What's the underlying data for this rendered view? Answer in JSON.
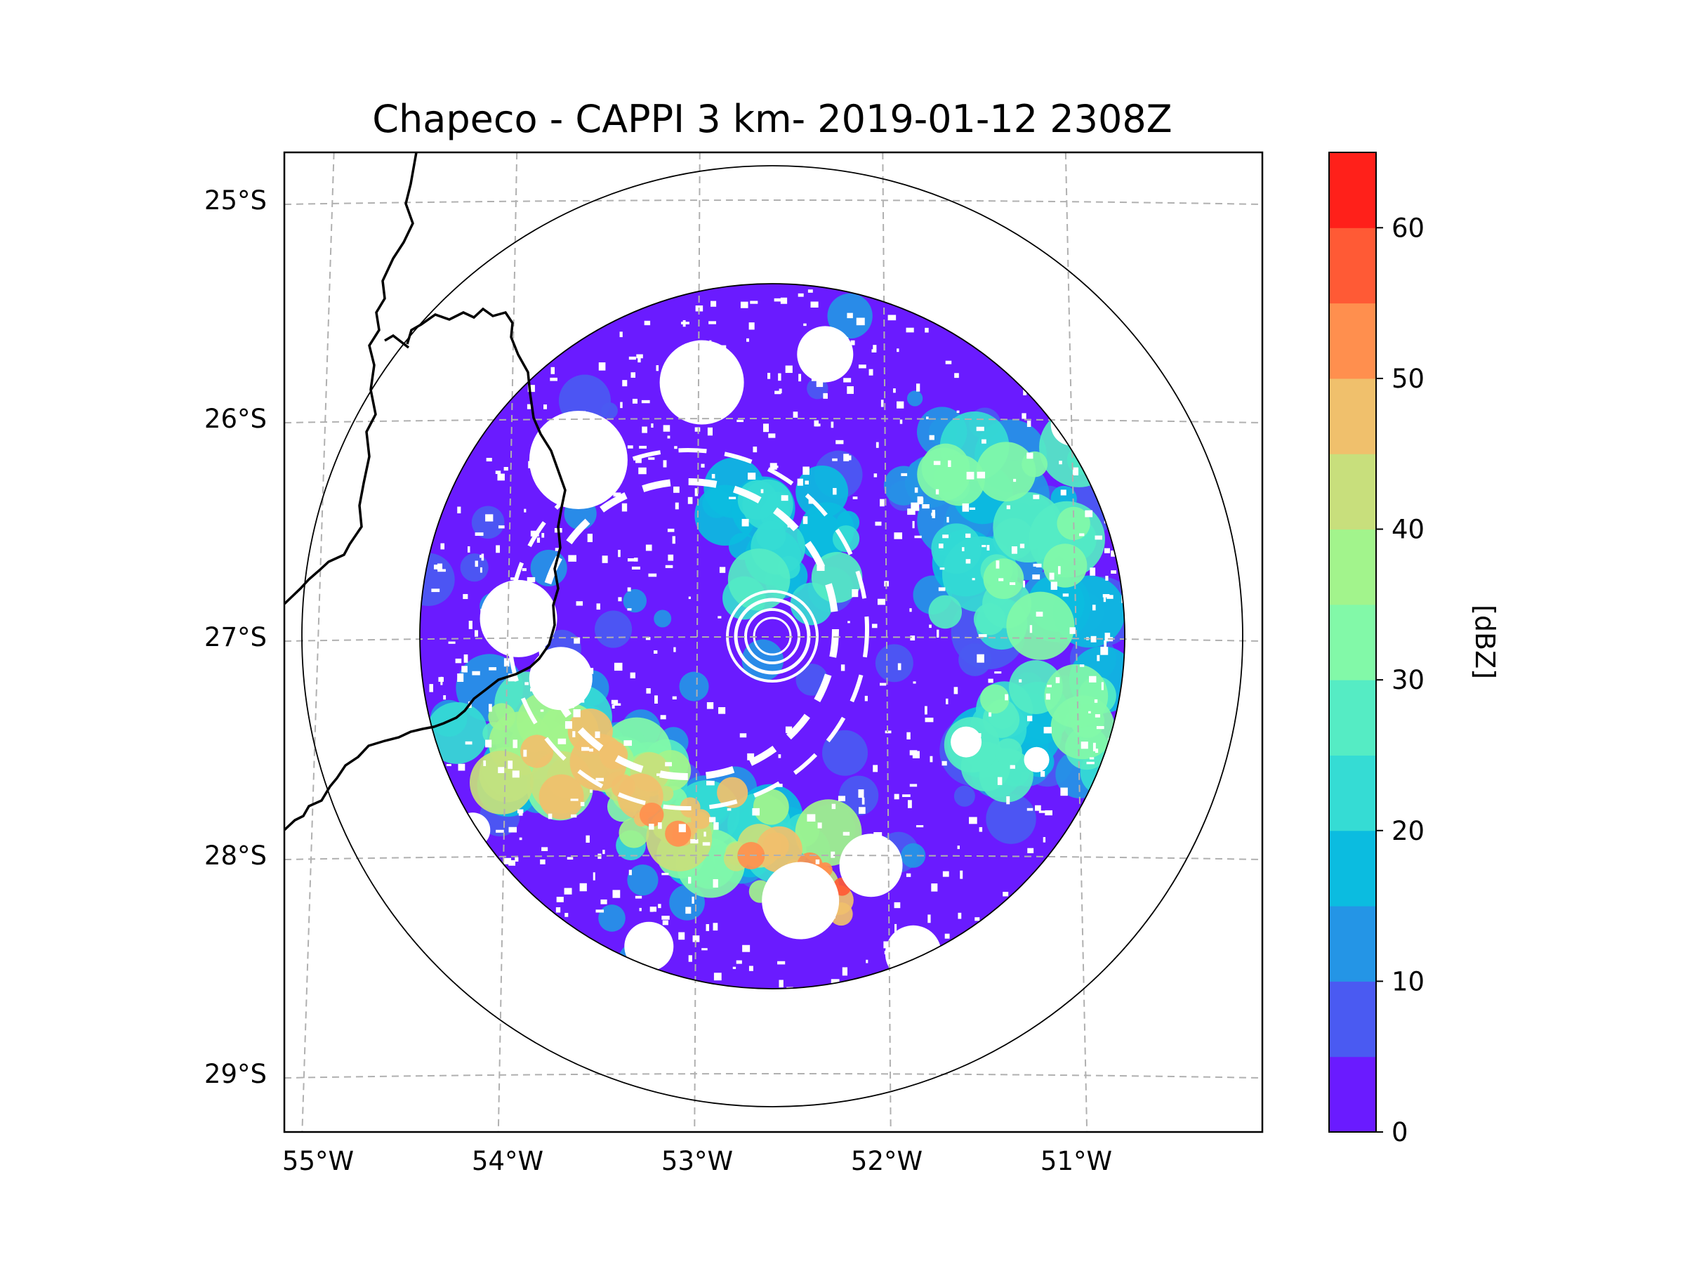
{
  "title": "Chapeco - CAPPI 3 km- 2019-01-12 2308Z",
  "map": {
    "lat_labels": [
      {
        "value": -25,
        "text": "25°S"
      },
      {
        "value": -26,
        "text": "26°S"
      },
      {
        "value": -27,
        "text": "27°S"
      },
      {
        "value": -28,
        "text": "28°S"
      },
      {
        "value": -29,
        "text": "29°S"
      }
    ],
    "lon_labels": [
      {
        "value": -55,
        "text": "55°W"
      },
      {
        "value": -54,
        "text": "54°W"
      },
      {
        "value": -53,
        "text": "53°W"
      },
      {
        "value": -52,
        "text": "52°W"
      },
      {
        "value": -51,
        "text": "51°W"
      }
    ],
    "radar_center": {
      "lat": -27.0,
      "lon": -52.6
    },
    "range_rings": [
      "inner",
      "outer"
    ],
    "gridline_style": "dashed-gray"
  },
  "colorbar": {
    "label": "[dBZ]",
    "min": 0,
    "max": 65,
    "tick_labels": [
      {
        "value": 0,
        "text": "0"
      },
      {
        "value": 10,
        "text": "10"
      },
      {
        "value": 20,
        "text": "20"
      },
      {
        "value": 30,
        "text": "30"
      },
      {
        "value": 40,
        "text": "40"
      },
      {
        "value": 50,
        "text": "50"
      },
      {
        "value": 60,
        "text": "60"
      }
    ],
    "bins": [
      {
        "from": 0,
        "to": 5,
        "color": "#6a1bff"
      },
      {
        "from": 5,
        "to": 10,
        "color": "#4a5af2"
      },
      {
        "from": 10,
        "to": 15,
        "color": "#2495e6"
      },
      {
        "from": 15,
        "to": 20,
        "color": "#0bbce0"
      },
      {
        "from": 20,
        "to": 25,
        "color": "#35dcd4"
      },
      {
        "from": 25,
        "to": 30,
        "color": "#55ecc4"
      },
      {
        "from": 30,
        "to": 35,
        "color": "#82f9a8"
      },
      {
        "from": 35,
        "to": 40,
        "color": "#a2f48c"
      },
      {
        "from": 40,
        "to": 45,
        "color": "#c8df7c"
      },
      {
        "from": 45,
        "to": 50,
        "color": "#f0c06c"
      },
      {
        "from": 50,
        "to": 55,
        "color": "#ff8f4e"
      },
      {
        "from": 55,
        "to": 60,
        "color": "#ff5a35"
      },
      {
        "from": 60,
        "to": 65,
        "color": "#ff201a"
      }
    ]
  },
  "colors": {
    "grid": "#b0b0b0",
    "border": "#000000",
    "background": "#ffffff"
  }
}
